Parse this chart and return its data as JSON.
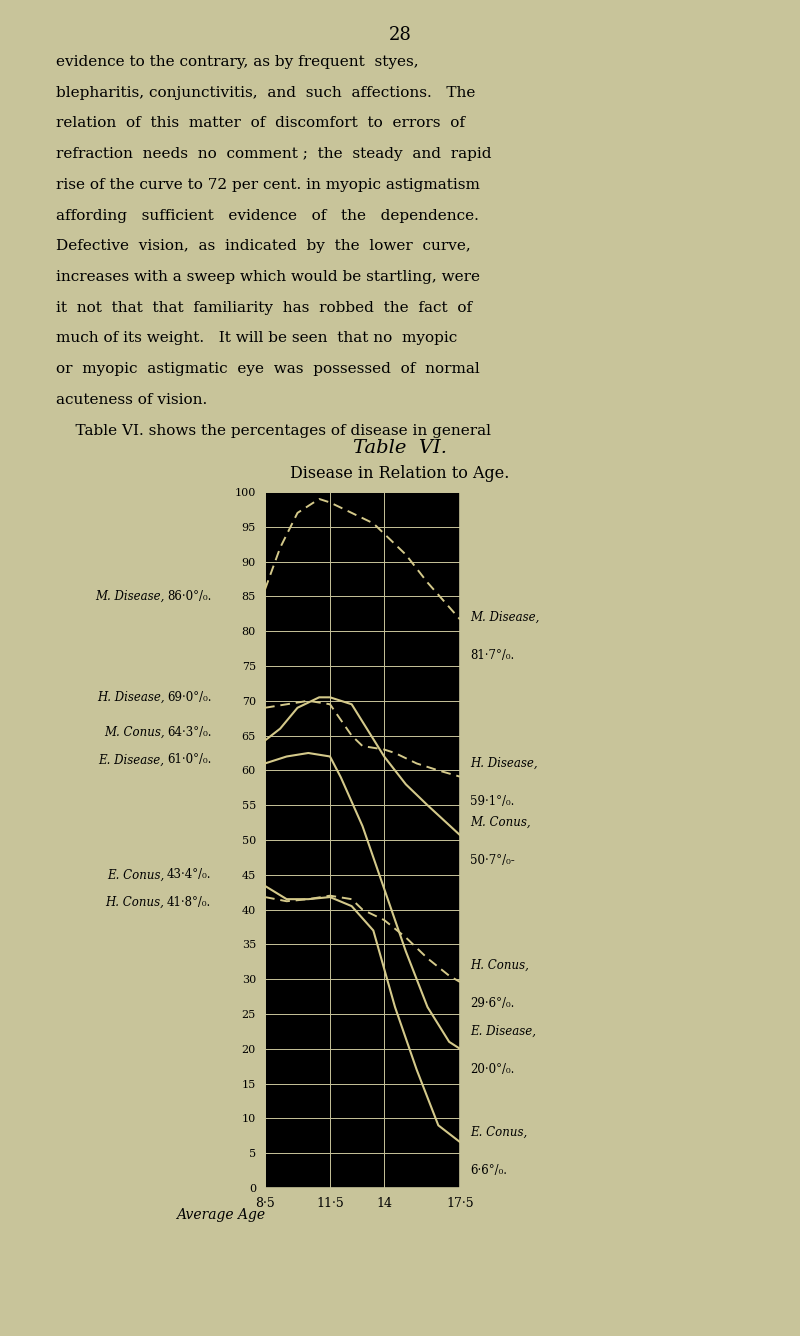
{
  "page_number": "28",
  "background_color": "#c8c49a",
  "plot_bg_color": "#000000",
  "grid_color": "#c8c49a",
  "curve_color": "#d4c98a",
  "text_lines": [
    "evidence to the contrary, as by frequent  styes,",
    "blepharitis, conjunctivitis,  and  such  affections.   The",
    "relation  of  this  matter  of  discomfort  to  errors  of",
    "refraction  needs  no  comment ;  the  steady  and  rapid",
    "rise of the curve to 72 per cent. in myopic astigmatism",
    "affording   sufficient   evidence   of   the   dependence.",
    "Defective  vision,  as  indicated  by  the  lower  curve,",
    "increases with a sweep which would be startling, were",
    "it  not  that  that  familiarity  has  robbed  the  fact  of",
    "much of its weight.   It will be seen  that no  myopic",
    "or  myopic  astigmatic  eye  was  possessed  of  normal",
    "acuteness of vision.",
    "    Table VI. shows the percentages of disease in general"
  ],
  "title": "Table  VI.",
  "subtitle": "Disease in Relation to Age.",
  "x_ticks": [
    8.5,
    11.5,
    14.0,
    17.5
  ],
  "x_tick_labels": [
    "8·5",
    "11·5",
    "14",
    "17·5"
  ],
  "x_label": "Average Age",
  "ylim": [
    0,
    100
  ],
  "yticks": [
    0,
    5,
    10,
    15,
    20,
    25,
    30,
    35,
    40,
    45,
    50,
    55,
    60,
    65,
    70,
    75,
    80,
    85,
    90,
    95,
    100
  ],
  "left_labels": [
    {
      "text": "M. Disease,",
      "value": "86·0°/₀.",
      "y": 85.0
    },
    {
      "text": "H. Disease,",
      "value": "69·0°/₀.",
      "y": 70.5
    },
    {
      "text": "M. Conus,",
      "value": "64·3°/₀.",
      "y": 65.5
    },
    {
      "text": "E. Disease,",
      "value": "61·0°/₀.",
      "y": 61.5
    },
    {
      "text": "E. Conus,",
      "value": "43·4°/₀.",
      "y": 45.0
    },
    {
      "text": "H. Conus,",
      "value": "41·8°/₀.",
      "y": 41.0
    }
  ],
  "right_labels": [
    {
      "text": "M. Disease,",
      "value": "81·7°/₀.",
      "y": 80.5
    },
    {
      "text": "H. Disease,",
      "value": "59·1°/₀.",
      "y": 59.5
    },
    {
      "text": "M. Conus,",
      "value": "50·7°/₀-",
      "y": 51.0
    },
    {
      "text": "H. Conus,",
      "value": "29·6°/₀.",
      "y": 30.5
    },
    {
      "text": "E. Disease,",
      "value": "20·0°/₀.",
      "y": 21.0
    },
    {
      "text": "E. Conus,",
      "value": "6·6°/₀.",
      "y": 6.5
    }
  ],
  "curves": {
    "M_Disease": {
      "x": [
        8.5,
        9.2,
        10.0,
        11.0,
        11.5,
        12.5,
        13.5,
        14.0,
        15.0,
        16.0,
        17.5
      ],
      "y": [
        86.0,
        92.0,
        97.0,
        99.0,
        98.5,
        97.0,
        95.5,
        94.0,
        91.0,
        87.0,
        81.7
      ],
      "style": "dashed"
    },
    "H_Disease": {
      "x": [
        8.5,
        9.5,
        10.5,
        11.5,
        12.5,
        13.0,
        14.0,
        14.5,
        15.5,
        16.5,
        17.5
      ],
      "y": [
        69.0,
        69.5,
        70.0,
        69.5,
        65.0,
        63.5,
        63.0,
        62.5,
        61.0,
        60.0,
        59.1
      ],
      "style": "dashed"
    },
    "M_Conus": {
      "x": [
        8.5,
        9.2,
        10.0,
        11.0,
        11.5,
        12.5,
        13.0,
        14.0,
        15.0,
        16.0,
        17.5
      ],
      "y": [
        64.3,
        66.0,
        69.0,
        70.5,
        70.5,
        69.5,
        67.0,
        62.0,
        58.0,
        55.0,
        50.7
      ],
      "style": "solid"
    },
    "E_Disease": {
      "x": [
        8.5,
        9.5,
        10.5,
        11.5,
        12.0,
        13.0,
        14.0,
        15.0,
        16.0,
        17.0,
        17.5
      ],
      "y": [
        61.0,
        62.0,
        62.5,
        62.0,
        59.0,
        52.0,
        43.0,
        34.0,
        26.0,
        21.0,
        20.0
      ],
      "style": "solid"
    },
    "E_Conus": {
      "x": [
        8.5,
        9.5,
        10.5,
        11.5,
        12.5,
        13.5,
        14.5,
        15.5,
        16.5,
        17.5
      ],
      "y": [
        43.4,
        41.5,
        41.5,
        41.8,
        40.5,
        37.0,
        26.0,
        17.0,
        9.0,
        6.6
      ],
      "style": "solid"
    },
    "H_Conus": {
      "x": [
        8.5,
        9.5,
        10.5,
        11.5,
        12.5,
        13.0,
        14.0,
        15.0,
        16.0,
        17.0,
        17.5
      ],
      "y": [
        41.8,
        41.2,
        41.5,
        42.0,
        41.5,
        40.0,
        38.5,
        36.0,
        33.0,
        30.5,
        29.6
      ],
      "style": "dashed"
    }
  }
}
